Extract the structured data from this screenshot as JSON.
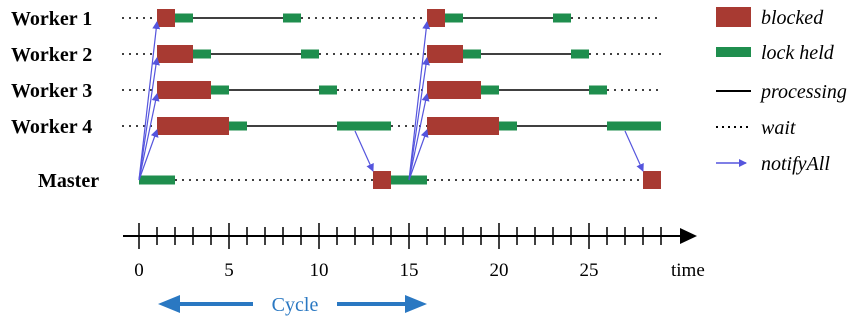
{
  "rows": [
    {
      "id": "w1",
      "label": "Worker 1"
    },
    {
      "id": "w2",
      "label": "Worker 2"
    },
    {
      "id": "w3",
      "label": "Worker 3"
    },
    {
      "id": "w4",
      "label": "Worker 4"
    },
    {
      "id": "m",
      "label": "Master"
    }
  ],
  "axis": {
    "min": 0,
    "max": 29,
    "major_ticks": [
      0,
      5,
      10,
      15,
      20,
      25
    ],
    "unit_label": "time"
  },
  "legend": {
    "blocked": "blocked",
    "lock_held": "lock held",
    "processing": "processing",
    "wait": "wait",
    "notify_all": "notifyAll"
  },
  "cycle": {
    "label": "Cycle",
    "from": 1,
    "to": 16
  },
  "colors": {
    "blocked": "#a83a32",
    "lock_held": "#1f8e4e",
    "notify": "#5555dd",
    "cycle": "#2a78c2"
  },
  "timeline": [
    {
      "row": "w1",
      "segments": [
        {
          "type": "blocked",
          "start": 1,
          "end": 2
        },
        {
          "type": "lock",
          "start": 2,
          "end": 3
        },
        {
          "type": "processing",
          "start": 3,
          "end": 8
        },
        {
          "type": "lock",
          "start": 8,
          "end": 9
        },
        {
          "type": "wait",
          "start": 9,
          "end": 16
        },
        {
          "type": "blocked",
          "start": 16,
          "end": 17
        },
        {
          "type": "lock",
          "start": 17,
          "end": 18
        },
        {
          "type": "processing",
          "start": 18,
          "end": 23
        },
        {
          "type": "lock",
          "start": 23,
          "end": 24
        },
        {
          "type": "wait",
          "start": 24,
          "end": 29
        }
      ]
    },
    {
      "row": "w2",
      "segments": [
        {
          "type": "blocked",
          "start": 1,
          "end": 3
        },
        {
          "type": "lock",
          "start": 3,
          "end": 4
        },
        {
          "type": "processing",
          "start": 4,
          "end": 9
        },
        {
          "type": "lock",
          "start": 9,
          "end": 10
        },
        {
          "type": "wait",
          "start": 10,
          "end": 16
        },
        {
          "type": "blocked",
          "start": 16,
          "end": 18
        },
        {
          "type": "lock",
          "start": 18,
          "end": 19
        },
        {
          "type": "processing",
          "start": 19,
          "end": 24
        },
        {
          "type": "lock",
          "start": 24,
          "end": 25
        },
        {
          "type": "wait",
          "start": 25,
          "end": 29
        }
      ]
    },
    {
      "row": "w3",
      "segments": [
        {
          "type": "blocked",
          "start": 1,
          "end": 4
        },
        {
          "type": "lock",
          "start": 4,
          "end": 5
        },
        {
          "type": "processing",
          "start": 5,
          "end": 10
        },
        {
          "type": "lock",
          "start": 10,
          "end": 11
        },
        {
          "type": "wait",
          "start": 11,
          "end": 16
        },
        {
          "type": "blocked",
          "start": 16,
          "end": 19
        },
        {
          "type": "lock",
          "start": 19,
          "end": 20
        },
        {
          "type": "processing",
          "start": 20,
          "end": 25
        },
        {
          "type": "lock",
          "start": 25,
          "end": 26
        },
        {
          "type": "wait",
          "start": 26,
          "end": 29
        }
      ]
    },
    {
      "row": "w4",
      "segments": [
        {
          "type": "blocked",
          "start": 1,
          "end": 5
        },
        {
          "type": "lock",
          "start": 5,
          "end": 6
        },
        {
          "type": "processing",
          "start": 6,
          "end": 11
        },
        {
          "type": "lock",
          "start": 11,
          "end": 14
        },
        {
          "type": "wait",
          "start": 14,
          "end": 16
        },
        {
          "type": "blocked",
          "start": 16,
          "end": 20
        },
        {
          "type": "lock",
          "start": 20,
          "end": 21
        },
        {
          "type": "processing",
          "start": 21,
          "end": 26
        },
        {
          "type": "lock",
          "start": 26,
          "end": 29
        }
      ]
    },
    {
      "row": "m",
      "segments": [
        {
          "type": "lock",
          "start": 0,
          "end": 2
        },
        {
          "type": "wait",
          "start": 2,
          "end": 13
        },
        {
          "type": "blocked",
          "start": 13,
          "end": 14
        },
        {
          "type": "lock",
          "start": 14,
          "end": 16
        },
        {
          "type": "wait",
          "start": 16,
          "end": 28
        },
        {
          "type": "blocked",
          "start": 28,
          "end": 29
        }
      ]
    }
  ],
  "notify_arrows": [
    {
      "from_row": "m",
      "from_t": 0,
      "to_row": "w1",
      "to_t": 1
    },
    {
      "from_row": "m",
      "from_t": 0,
      "to_row": "w2",
      "to_t": 1
    },
    {
      "from_row": "m",
      "from_t": 0,
      "to_row": "w3",
      "to_t": 1
    },
    {
      "from_row": "m",
      "from_t": 0,
      "to_row": "w4",
      "to_t": 1
    },
    {
      "from_row": "m",
      "from_t": 15,
      "to_row": "w1",
      "to_t": 16
    },
    {
      "from_row": "m",
      "from_t": 15,
      "to_row": "w2",
      "to_t": 16
    },
    {
      "from_row": "m",
      "from_t": 15,
      "to_row": "w3",
      "to_t": 16
    },
    {
      "from_row": "m",
      "from_t": 15,
      "to_row": "w4",
      "to_t": 16
    },
    {
      "from_row": "w4",
      "from_t": 12,
      "to_row": "m",
      "to_t": 13
    },
    {
      "from_row": "w4",
      "from_t": 27,
      "to_row": "m",
      "to_t": 28
    }
  ]
}
